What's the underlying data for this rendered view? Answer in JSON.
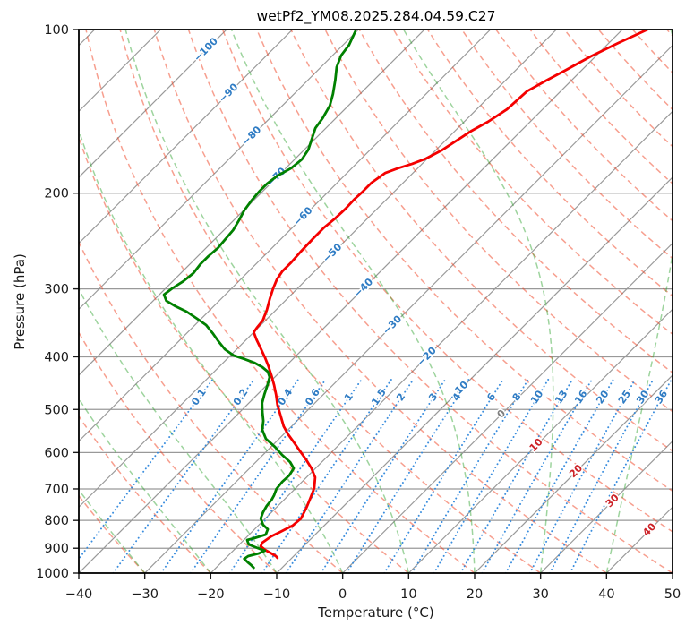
{
  "title": "wetPf2_YM08.2025.284.04.59.C27",
  "axes": {
    "x": {
      "label": "Temperature (°C)",
      "min": -40,
      "max": 50,
      "ticks": [
        -40,
        -30,
        -20,
        -10,
        0,
        10,
        20,
        30,
        40,
        50
      ]
    },
    "y": {
      "label": "Pressure (hPa)",
      "min": 100,
      "max": 1000,
      "scale": "log",
      "ticks": [
        100,
        200,
        300,
        400,
        500,
        600,
        700,
        800,
        900,
        1000
      ]
    }
  },
  "colors": {
    "frame": "#000000",
    "grid_gray": "#999999",
    "isotherm": "#999999",
    "dry_adiabat": "#f04020",
    "moist_adiabat": "#28a028",
    "mixing_line": "#2f87dc",
    "label_blue": "#2f7cc4",
    "label_red": "#cc2127",
    "label_gray": "#808080",
    "temperature_line": "#f40000",
    "dewpoint_line": "#008000",
    "tick_text": "#1a1a1a"
  },
  "chart_data": {
    "type": "line",
    "subtype": "skewt-log-p",
    "skew_degrees": 45,
    "isotherms": {
      "min": -120,
      "max": 50,
      "step": 10
    },
    "isotherm_labels": [
      {
        "value": -100,
        "p": 109
      },
      {
        "value": -90,
        "p": 131
      },
      {
        "value": -80,
        "p": 157
      },
      {
        "value": -70,
        "p": 187
      },
      {
        "value": -60,
        "p": 221
      },
      {
        "value": -50,
        "p": 258
      },
      {
        "value": -40,
        "p": 299
      },
      {
        "value": -30,
        "p": 350
      },
      {
        "value": -20,
        "p": 400
      },
      {
        "value": -10,
        "p": 462
      },
      {
        "value": 0,
        "p": 510
      },
      {
        "value": 10,
        "p": 582
      },
      {
        "value": 20,
        "p": 650
      },
      {
        "value": 30,
        "p": 737
      },
      {
        "value": 40,
        "p": 833
      }
    ],
    "dry_adiabats": {
      "min": -130,
      "max": 190,
      "step": 10
    },
    "moist_adiabats": {
      "min": -130,
      "max": 90,
      "step": 10
    },
    "mixing_ratio": {
      "values": [
        0.1,
        0.2,
        0.4,
        0.6,
        1,
        1.5,
        2,
        3,
        4,
        6,
        8,
        10,
        13,
        16,
        20,
        25,
        30,
        36
      ],
      "label_pressure": 475,
      "top_pressure": 440,
      "bottom_pressure": 1000
    },
    "series": [
      {
        "name": "temperature",
        "color_key": "temperature_line",
        "points_pT": [
          [
            100,
            -36.2
          ],
          [
            105.9,
            -38.6
          ],
          [
            112,
            -40.7
          ],
          [
            118.6,
            -42.4
          ],
          [
            124.1,
            -43.8
          ],
          [
            129.9,
            -45.1
          ],
          [
            140.2,
            -45.4
          ],
          [
            147.8,
            -46.4
          ],
          [
            153.5,
            -47.5
          ],
          [
            160.1,
            -48.3
          ],
          [
            166.9,
            -49.1
          ],
          [
            172.7,
            -50.2
          ],
          [
            176.6,
            -51.5
          ],
          [
            180,
            -53
          ],
          [
            183.5,
            -54.2
          ],
          [
            191.3,
            -54.8
          ],
          [
            199.4,
            -54.8
          ],
          [
            204.8,
            -54.9
          ],
          [
            213.5,
            -54.8
          ],
          [
            222.6,
            -54.9
          ],
          [
            231.2,
            -55.2
          ],
          [
            242,
            -55.2
          ],
          [
            255.2,
            -55.1
          ],
          [
            268.1,
            -54.9
          ],
          [
            278.5,
            -54.9
          ],
          [
            288.1,
            -54.5
          ],
          [
            299.3,
            -53.7
          ],
          [
            313.2,
            -52.6
          ],
          [
            327.8,
            -51.4
          ],
          [
            343.1,
            -50.4
          ],
          [
            353.7,
            -50.2
          ],
          [
            360.4,
            -50
          ],
          [
            371.6,
            -48.5
          ],
          [
            385.9,
            -46.5
          ],
          [
            400.9,
            -44.5
          ],
          [
            416.4,
            -42.6
          ],
          [
            432.5,
            -40.8
          ],
          [
            450.9,
            -38.9
          ],
          [
            470.1,
            -37.1
          ],
          [
            490.2,
            -35.4
          ],
          [
            513,
            -33.3
          ],
          [
            536.9,
            -31.2
          ],
          [
            555.6,
            -29.3
          ],
          [
            574.8,
            -27.2
          ],
          [
            597,
            -24.9
          ],
          [
            617.8,
            -22.8
          ],
          [
            641.7,
            -20.6
          ],
          [
            666.4,
            -18.7
          ],
          [
            697.5,
            -17.2
          ],
          [
            730,
            -16.2
          ],
          [
            758.2,
            -15.4
          ],
          [
            793.5,
            -14.6
          ],
          [
            817.9,
            -14.8
          ],
          [
            839.9,
            -15.7
          ],
          [
            856,
            -16.4
          ],
          [
            879,
            -16.8
          ],
          [
            892.4,
            -16.5
          ],
          [
            906.1,
            -15.3
          ],
          [
            919.9,
            -13.8
          ],
          [
            930.5,
            -12.7
          ],
          [
            937.6,
            -12.2
          ]
        ]
      },
      {
        "name": "dewpoint",
        "color_key": "dewpoint_line",
        "points_pT": [
          [
            100.8,
            -80.2
          ],
          [
            106.7,
            -79.1
          ],
          [
            111.6,
            -78.7
          ],
          [
            117.3,
            -77.6
          ],
          [
            124.1,
            -75.8
          ],
          [
            131.4,
            -74.1
          ],
          [
            138.1,
            -72.8
          ],
          [
            145.6,
            -72
          ],
          [
            151.8,
            -71.6
          ],
          [
            158.9,
            -70.5
          ],
          [
            166.3,
            -69.4
          ],
          [
            173.4,
            -68.9
          ],
          [
            180,
            -69.2
          ],
          [
            185.6,
            -70.1
          ],
          [
            192,
            -70.5
          ],
          [
            198.7,
            -70.5
          ],
          [
            206.4,
            -70.3
          ],
          [
            215.2,
            -69.9
          ],
          [
            224.3,
            -69.2
          ],
          [
            233.9,
            -68.6
          ],
          [
            242.9,
            -68.4
          ],
          [
            252.3,
            -68.2
          ],
          [
            261.1,
            -68.4
          ],
          [
            270.2,
            -68.4
          ],
          [
            280.6,
            -68.1
          ],
          [
            290.4,
            -68.4
          ],
          [
            299.3,
            -69
          ],
          [
            307.4,
            -69.3
          ],
          [
            315.6,
            -68
          ],
          [
            322.9,
            -65.8
          ],
          [
            330.3,
            -63.3
          ],
          [
            340.5,
            -60.6
          ],
          [
            349.7,
            -58.3
          ],
          [
            361.8,
            -56.1
          ],
          [
            374.4,
            -54
          ],
          [
            387.4,
            -51.8
          ],
          [
            397.8,
            -49.5
          ],
          [
            403.9,
            -47.3
          ],
          [
            410.1,
            -45.3
          ],
          [
            417.9,
            -43.4
          ],
          [
            425.9,
            -41.9
          ],
          [
            435.7,
            -40.8
          ],
          [
            450.9,
            -39.9
          ],
          [
            468.3,
            -39
          ],
          [
            486.4,
            -38
          ],
          [
            505.2,
            -36.6
          ],
          [
            524.8,
            -35.1
          ],
          [
            545,
            -33.9
          ],
          [
            566.1,
            -32
          ],
          [
            585.8,
            -29.4
          ],
          [
            606.1,
            -27.1
          ],
          [
            624.8,
            -24.8
          ],
          [
            641.6,
            -23.3
          ],
          [
            661.4,
            -22.9
          ],
          [
            679.2,
            -23
          ],
          [
            700.1,
            -22.8
          ],
          [
            719,
            -22.2
          ],
          [
            732.7,
            -21.9
          ],
          [
            752.4,
            -21.7
          ],
          [
            772.6,
            -21.3
          ],
          [
            793.4,
            -20.7
          ],
          [
            814.8,
            -19.4
          ],
          [
            830.4,
            -18
          ],
          [
            849.5,
            -17.5
          ],
          [
            862.5,
            -18.7
          ],
          [
            869,
            -19.5
          ],
          [
            885.7,
            -18.6
          ],
          [
            899.2,
            -16.7
          ],
          [
            909.5,
            -15.2
          ],
          [
            919.9,
            -15.7
          ],
          [
            930.4,
            -16.9
          ],
          [
            941.1,
            -17.1
          ],
          [
            955.5,
            -16
          ],
          [
            966.4,
            -15.1
          ],
          [
            977.5,
            -14.3
          ]
        ]
      }
    ]
  }
}
